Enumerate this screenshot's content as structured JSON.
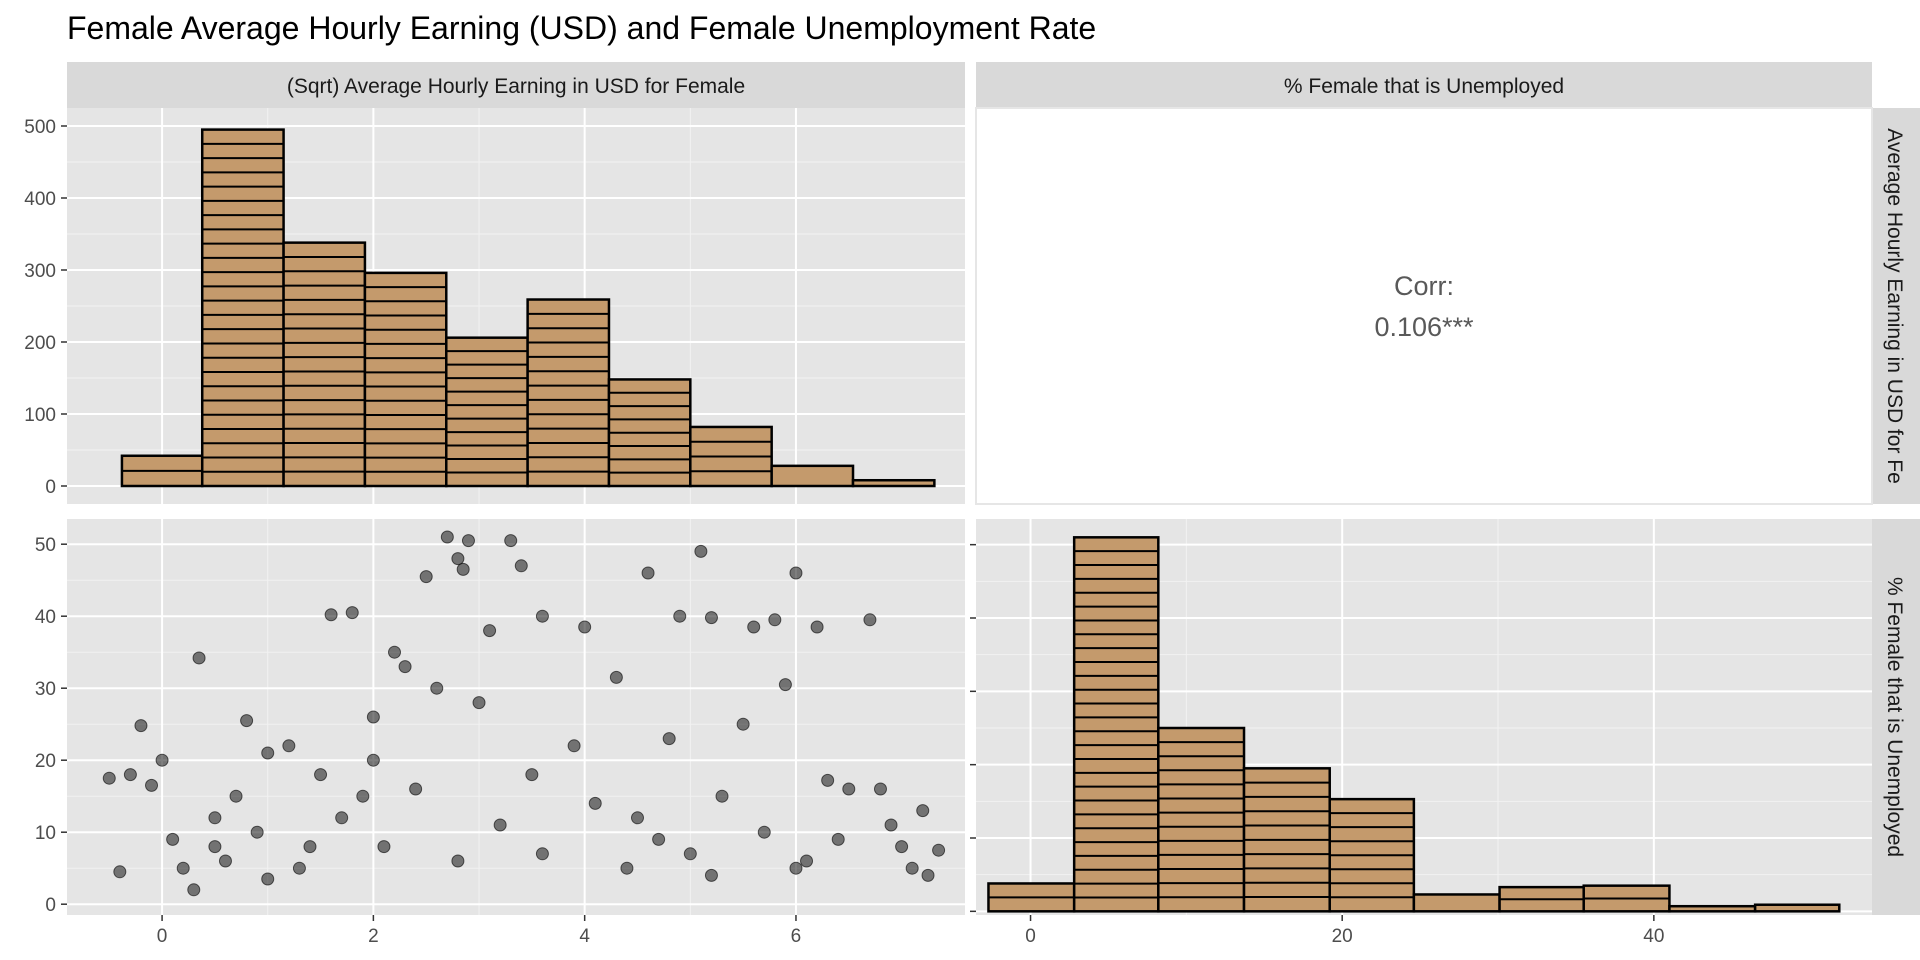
{
  "chart_data": {
    "type": "pairs",
    "title": "Female Average Hourly Earning (USD) and Female Unemployment Rate",
    "column_strips": [
      "(Sqrt) Average Hourly Earning in USD for Female",
      "% Female that is Unemployed"
    ],
    "row_strips": [
      "Average Hourly Earning in USD for Fe",
      "% Female that is Unemployed"
    ],
    "fill_color": "#c49a6c",
    "outline_color": "#000000",
    "point_color": "#000000",
    "panel_background": "#e5e5e5",
    "strip_background": "#d9d9d9",
    "hist_earning": {
      "xlim": [
        -0.9,
        7.6
      ],
      "ylim": [
        -25,
        525
      ],
      "x_ticks": [
        0,
        2,
        4,
        6
      ],
      "y_ticks": [
        0,
        100,
        200,
        300,
        400,
        500
      ],
      "bins": [
        {
          "x0": -0.38,
          "x1": 0.38,
          "count": 42
        },
        {
          "x0": 0.38,
          "x1": 1.15,
          "count": 495
        },
        {
          "x0": 1.15,
          "x1": 1.92,
          "count": 338
        },
        {
          "x0": 1.92,
          "x1": 2.69,
          "count": 296
        },
        {
          "x0": 2.69,
          "x1": 3.46,
          "count": 206
        },
        {
          "x0": 3.46,
          "x1": 4.23,
          "count": 259
        },
        {
          "x0": 4.23,
          "x1": 5.0,
          "count": 148
        },
        {
          "x0": 5.0,
          "x1": 5.77,
          "count": 82
        },
        {
          "x0": 5.77,
          "x1": 6.54,
          "count": 28
        },
        {
          "x0": 6.54,
          "x1": 7.31,
          "count": 8
        }
      ]
    },
    "correlation": {
      "label": "Corr:",
      "value": "0.106***"
    },
    "scatter": {
      "xlim": [
        -0.9,
        7.6
      ],
      "ylim": [
        -1.5,
        53.5
      ],
      "x_ticks": [
        0,
        2,
        4,
        6
      ],
      "y_ticks": [
        0,
        10,
        20,
        30,
        40,
        50
      ],
      "points": [
        [
          -0.5,
          17.5
        ],
        [
          -0.4,
          4.5
        ],
        [
          -0.3,
          18
        ],
        [
          -0.2,
          24.8
        ],
        [
          -0.1,
          16.5
        ],
        [
          0.0,
          20
        ],
        [
          0.1,
          9
        ],
        [
          0.2,
          5
        ],
        [
          0.35,
          34.2
        ],
        [
          0.5,
          12
        ],
        [
          0.6,
          6
        ],
        [
          0.8,
          25.5
        ],
        [
          1.0,
          3.5
        ],
        [
          1.2,
          22
        ],
        [
          1.4,
          8
        ],
        [
          1.6,
          40.2
        ],
        [
          1.8,
          40.5
        ],
        [
          1.9,
          15
        ],
        [
          2.0,
          26
        ],
        [
          2.2,
          35
        ],
        [
          2.3,
          33
        ],
        [
          2.5,
          45.5
        ],
        [
          2.7,
          51
        ],
        [
          2.8,
          48
        ],
        [
          2.85,
          46.5
        ],
        [
          2.9,
          50.5
        ],
        [
          3.1,
          38
        ],
        [
          3.3,
          50.5
        ],
        [
          3.4,
          47
        ],
        [
          3.6,
          40
        ],
        [
          4.0,
          38.5
        ],
        [
          4.3,
          31.5
        ],
        [
          4.6,
          46
        ],
        [
          4.9,
          40
        ],
        [
          5.1,
          49
        ],
        [
          5.2,
          39.8
        ],
        [
          5.6,
          38.5
        ],
        [
          5.8,
          39.5
        ],
        [
          6.0,
          46
        ],
        [
          6.2,
          38.5
        ],
        [
          6.5,
          16
        ],
        [
          6.7,
          39.5
        ],
        [
          6.8,
          16
        ],
        [
          6.9,
          11
        ],
        [
          7.0,
          8
        ],
        [
          7.1,
          5
        ],
        [
          7.2,
          13
        ],
        [
          7.25,
          4
        ],
        [
          7.35,
          7.5
        ],
        [
          5.5,
          25
        ],
        [
          5.9,
          30.5
        ],
        [
          6.3,
          17.2
        ],
        [
          4.8,
          23
        ],
        [
          5.3,
          15
        ],
        [
          6.1,
          6
        ],
        [
          5.0,
          7
        ],
        [
          4.5,
          12
        ],
        [
          3.9,
          22
        ],
        [
          3.5,
          18
        ],
        [
          3.0,
          28
        ],
        [
          2.6,
          30
        ],
        [
          2.0,
          20
        ],
        [
          1.5,
          18
        ],
        [
          1.0,
          21
        ],
        [
          0.7,
          15
        ],
        [
          0.5,
          8
        ],
        [
          0.3,
          2
        ],
        [
          0.9,
          10
        ],
        [
          1.3,
          5
        ],
        [
          1.7,
          12
        ],
        [
          2.1,
          8
        ],
        [
          2.4,
          16
        ],
        [
          2.8,
          6
        ],
        [
          3.2,
          11
        ],
        [
          3.6,
          7
        ],
        [
          4.1,
          14
        ],
        [
          4.4,
          5
        ],
        [
          4.7,
          9
        ],
        [
          5.2,
          4
        ],
        [
          5.7,
          10
        ],
        [
          6.0,
          5
        ],
        [
          6.4,
          9
        ]
      ]
    },
    "hist_unemployment": {
      "xlim": [
        -3.5,
        54
      ],
      "ylim": [
        -0.5,
        53.5
      ],
      "x_ticks": [
        0,
        20,
        40
      ],
      "bins": [
        {
          "x0": -2.7,
          "x1": 2.8,
          "count": 3.8
        },
        {
          "x0": 2.8,
          "x1": 8.2,
          "count": 51
        },
        {
          "x0": 8.2,
          "x1": 13.7,
          "count": 25
        },
        {
          "x0": 13.7,
          "x1": 19.2,
          "count": 19.5
        },
        {
          "x0": 19.2,
          "x1": 24.6,
          "count": 15.3
        },
        {
          "x0": 24.6,
          "x1": 30.1,
          "count": 2.3
        },
        {
          "x0": 30.1,
          "x1": 35.5,
          "count": 3.3
        },
        {
          "x0": 35.5,
          "x1": 41.0,
          "count": 3.5
        },
        {
          "x0": 41.0,
          "x1": 46.5,
          "count": 0.7
        },
        {
          "x0": 46.5,
          "x1": 51.9,
          "count": 0.9
        }
      ]
    }
  }
}
